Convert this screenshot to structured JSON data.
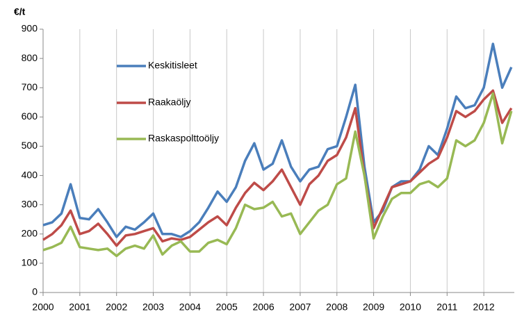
{
  "chart_data": {
    "type": "line",
    "y_label": "€/t",
    "x": [
      2000,
      2000.25,
      2000.5,
      2000.75,
      2001,
      2001.25,
      2001.5,
      2001.75,
      2002,
      2002.25,
      2002.5,
      2002.75,
      2003,
      2003.25,
      2003.5,
      2003.75,
      2004,
      2004.25,
      2004.5,
      2004.75,
      2005,
      2005.25,
      2005.5,
      2005.75,
      2006,
      2006.25,
      2006.5,
      2006.75,
      2007,
      2007.25,
      2007.5,
      2007.75,
      2008,
      2008.25,
      2008.5,
      2008.75,
      2009,
      2009.25,
      2009.5,
      2009.75,
      2010,
      2010.25,
      2010.5,
      2010.75,
      2011,
      2011.25,
      2011.5,
      2011.75,
      2012,
      2012.25,
      2012.5,
      2012.75
    ],
    "series": [
      {
        "name": "Keskitisleet",
        "color": "#4a7ebb",
        "values": [
          230,
          240,
          270,
          370,
          255,
          250,
          285,
          240,
          190,
          225,
          215,
          240,
          270,
          200,
          200,
          190,
          210,
          240,
          290,
          345,
          310,
          360,
          450,
          510,
          420,
          440,
          520,
          430,
          380,
          420,
          430,
          490,
          500,
          600,
          710,
          430,
          240,
          280,
          360,
          380,
          380,
          420,
          500,
          470,
          560,
          670,
          630,
          640,
          700,
          850,
          700,
          770
        ]
      },
      {
        "name": "Raakaöljy",
        "color": "#be4b48",
        "values": [
          180,
          200,
          230,
          280,
          200,
          210,
          235,
          200,
          160,
          195,
          200,
          210,
          220,
          175,
          185,
          180,
          190,
          215,
          240,
          260,
          230,
          290,
          340,
          375,
          350,
          380,
          420,
          360,
          300,
          370,
          400,
          450,
          470,
          530,
          630,
          400,
          220,
          290,
          360,
          370,
          380,
          410,
          440,
          460,
          530,
          620,
          600,
          620,
          660,
          690,
          580,
          630
        ]
      },
      {
        "name": "Raskaspolttoöljy",
        "color": "#98b954",
        "values": [
          145,
          155,
          170,
          225,
          155,
          150,
          145,
          150,
          125,
          150,
          160,
          150,
          195,
          130,
          160,
          175,
          140,
          140,
          170,
          180,
          165,
          220,
          300,
          285,
          290,
          310,
          260,
          270,
          200,
          240,
          280,
          300,
          370,
          390,
          550,
          400,
          185,
          260,
          320,
          340,
          340,
          370,
          380,
          360,
          390,
          520,
          500,
          520,
          580,
          680,
          510,
          620
        ]
      }
    ],
    "xlim": [
      2000,
      2012.83
    ],
    "xticks": [
      2000,
      2001,
      2002,
      2003,
      2004,
      2005,
      2006,
      2007,
      2008,
      2009,
      2010,
      2011,
      2012
    ],
    "ylim": [
      0,
      900
    ],
    "yticks": [
      0,
      100,
      200,
      300,
      400,
      500,
      600,
      700,
      800,
      900
    ],
    "grid": "x"
  }
}
